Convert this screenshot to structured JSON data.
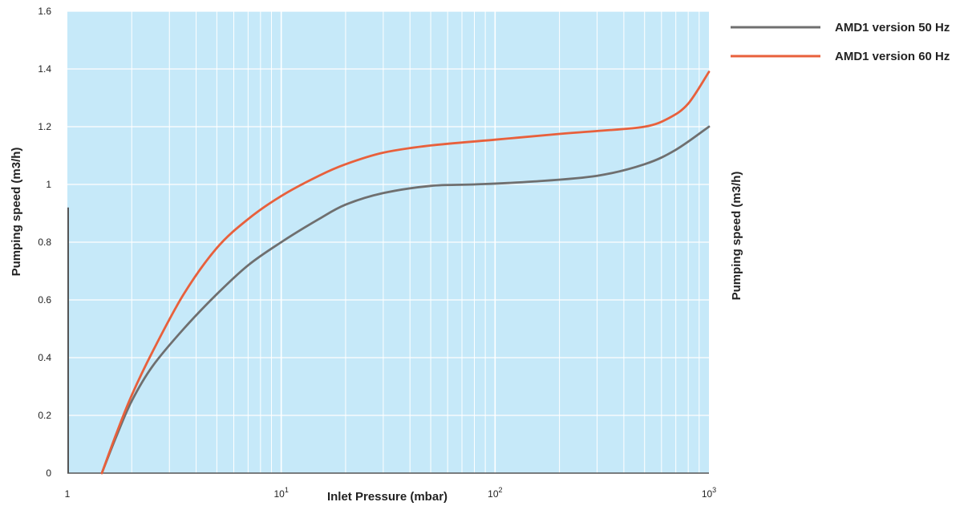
{
  "chart_data": {
    "type": "line",
    "xlabel": "Inlet Pressure (mbar)",
    "ylabel": "Pumping speed (m3/h)",
    "ylabel_right": "Pumping speed (m3/h)",
    "x_scale": "log",
    "xlim": [
      1,
      1000
    ],
    "ylim": [
      0,
      1.6
    ],
    "x_ticks": [
      {
        "value": 1,
        "base": "1",
        "exp": ""
      },
      {
        "value": 10,
        "base": "10",
        "exp": "1"
      },
      {
        "value": 100,
        "base": "10",
        "exp": "2"
      },
      {
        "value": 1000,
        "base": "10",
        "exp": "3"
      }
    ],
    "y_ticks": [
      {
        "value": 0,
        "label": "0"
      },
      {
        "value": 0.2,
        "label": "0.2"
      },
      {
        "value": 0.4,
        "label": "0.4"
      },
      {
        "value": 0.6,
        "label": "0.6"
      },
      {
        "value": 0.8,
        "label": "0.8"
      },
      {
        "value": 1.0,
        "label": "1"
      },
      {
        "value": 1.2,
        "label": "1.2"
      },
      {
        "value": 1.4,
        "label": "1.4"
      },
      {
        "value": 1.6,
        "label": "1.6"
      }
    ],
    "grid": true,
    "legend_position": "right-top",
    "background_color": "#c6e9f9",
    "series": [
      {
        "name": "AMD1 version 50 Hz",
        "color": "#6f6f6f",
        "points": [
          [
            1.45,
            0.0
          ],
          [
            1.7,
            0.13
          ],
          [
            2.0,
            0.25
          ],
          [
            2.5,
            0.37
          ],
          [
            3.5,
            0.5
          ],
          [
            5.0,
            0.62
          ],
          [
            7.0,
            0.72
          ],
          [
            10.0,
            0.8
          ],
          [
            15.0,
            0.88
          ],
          [
            20.0,
            0.93
          ],
          [
            30.0,
            0.97
          ],
          [
            50.0,
            0.995
          ],
          [
            80.0,
            1.0
          ],
          [
            150.0,
            1.01
          ],
          [
            300.0,
            1.03
          ],
          [
            500.0,
            1.07
          ],
          [
            700.0,
            1.12
          ],
          [
            1000.0,
            1.2
          ]
        ]
      },
      {
        "name": "AMD1 version 60 Hz",
        "color": "#e8603c",
        "points": [
          [
            1.45,
            0.0
          ],
          [
            1.7,
            0.14
          ],
          [
            2.0,
            0.27
          ],
          [
            2.5,
            0.42
          ],
          [
            3.5,
            0.62
          ],
          [
            5.0,
            0.78
          ],
          [
            7.0,
            0.88
          ],
          [
            10.0,
            0.96
          ],
          [
            15.0,
            1.03
          ],
          [
            20.0,
            1.07
          ],
          [
            30.0,
            1.11
          ],
          [
            50.0,
            1.135
          ],
          [
            100.0,
            1.155
          ],
          [
            200.0,
            1.175
          ],
          [
            300.0,
            1.185
          ],
          [
            500.0,
            1.2
          ],
          [
            650.0,
            1.23
          ],
          [
            800.0,
            1.28
          ],
          [
            1000.0,
            1.39
          ]
        ]
      }
    ]
  }
}
